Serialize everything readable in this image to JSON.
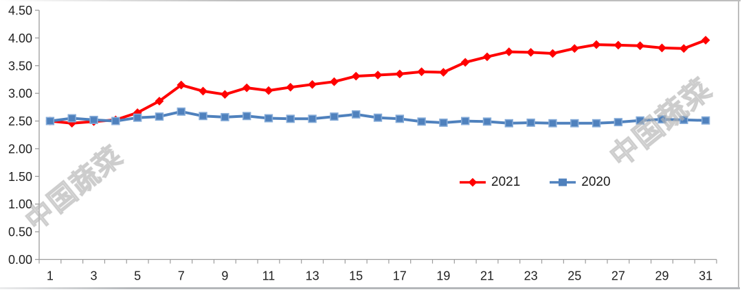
{
  "chart_data": {
    "type": "line",
    "title": "",
    "xlabel": "",
    "ylabel": "",
    "grid": false,
    "legend_position": "inside-bottom-center",
    "ylim": [
      0,
      4.5
    ],
    "y_tick_labels": [
      "0.00",
      "0.50",
      "1.00",
      "1.50",
      "2.00",
      "2.50",
      "3.00",
      "3.50",
      "4.00",
      "4.50"
    ],
    "x_categories": [
      1,
      2,
      3,
      4,
      5,
      6,
      7,
      8,
      9,
      10,
      11,
      12,
      13,
      14,
      15,
      16,
      17,
      18,
      19,
      20,
      21,
      22,
      23,
      24,
      25,
      26,
      27,
      28,
      29,
      30,
      31
    ],
    "x_axis_visible_labels": [
      "1",
      "3",
      "5",
      "7",
      "9",
      "11",
      "13",
      "15",
      "17",
      "19",
      "21",
      "23",
      "25",
      "27",
      "29",
      "31"
    ],
    "series": [
      {
        "name": "2021",
        "color": "#ff0000",
        "marker": "diamond",
        "values": [
          2.5,
          2.46,
          2.49,
          2.52,
          2.65,
          2.86,
          3.15,
          3.04,
          2.98,
          3.1,
          3.05,
          3.11,
          3.16,
          3.21,
          3.31,
          3.33,
          3.35,
          3.39,
          3.38,
          3.56,
          3.66,
          3.75,
          3.74,
          3.72,
          3.81,
          3.88,
          3.87,
          3.86,
          3.82,
          3.81,
          3.96
        ]
      },
      {
        "name": "2020",
        "color": "#4f81bd",
        "marker": "square",
        "marker_border": "#85abd8",
        "values": [
          2.5,
          2.55,
          2.52,
          2.5,
          2.56,
          2.58,
          2.67,
          2.59,
          2.57,
          2.59,
          2.55,
          2.54,
          2.54,
          2.58,
          2.62,
          2.56,
          2.54,
          2.49,
          2.47,
          2.5,
          2.49,
          2.46,
          2.47,
          2.46,
          2.46,
          2.46,
          2.48,
          2.51,
          2.53,
          2.52,
          2.51
        ]
      }
    ]
  },
  "legend": {
    "items": [
      {
        "label": "2021"
      },
      {
        "label": "2020"
      }
    ]
  },
  "watermarks": [
    {
      "text": "中国蔬菜"
    },
    {
      "text": "中国蔬菜"
    }
  ],
  "colors": {
    "axis": "#9c9c9c",
    "tick_label": "#1f1f1f",
    "frame_border": "#bdbdbd",
    "watermark": "#bbbbbb",
    "series_2021": "#ff0000",
    "series_2020": "#4f81bd"
  }
}
